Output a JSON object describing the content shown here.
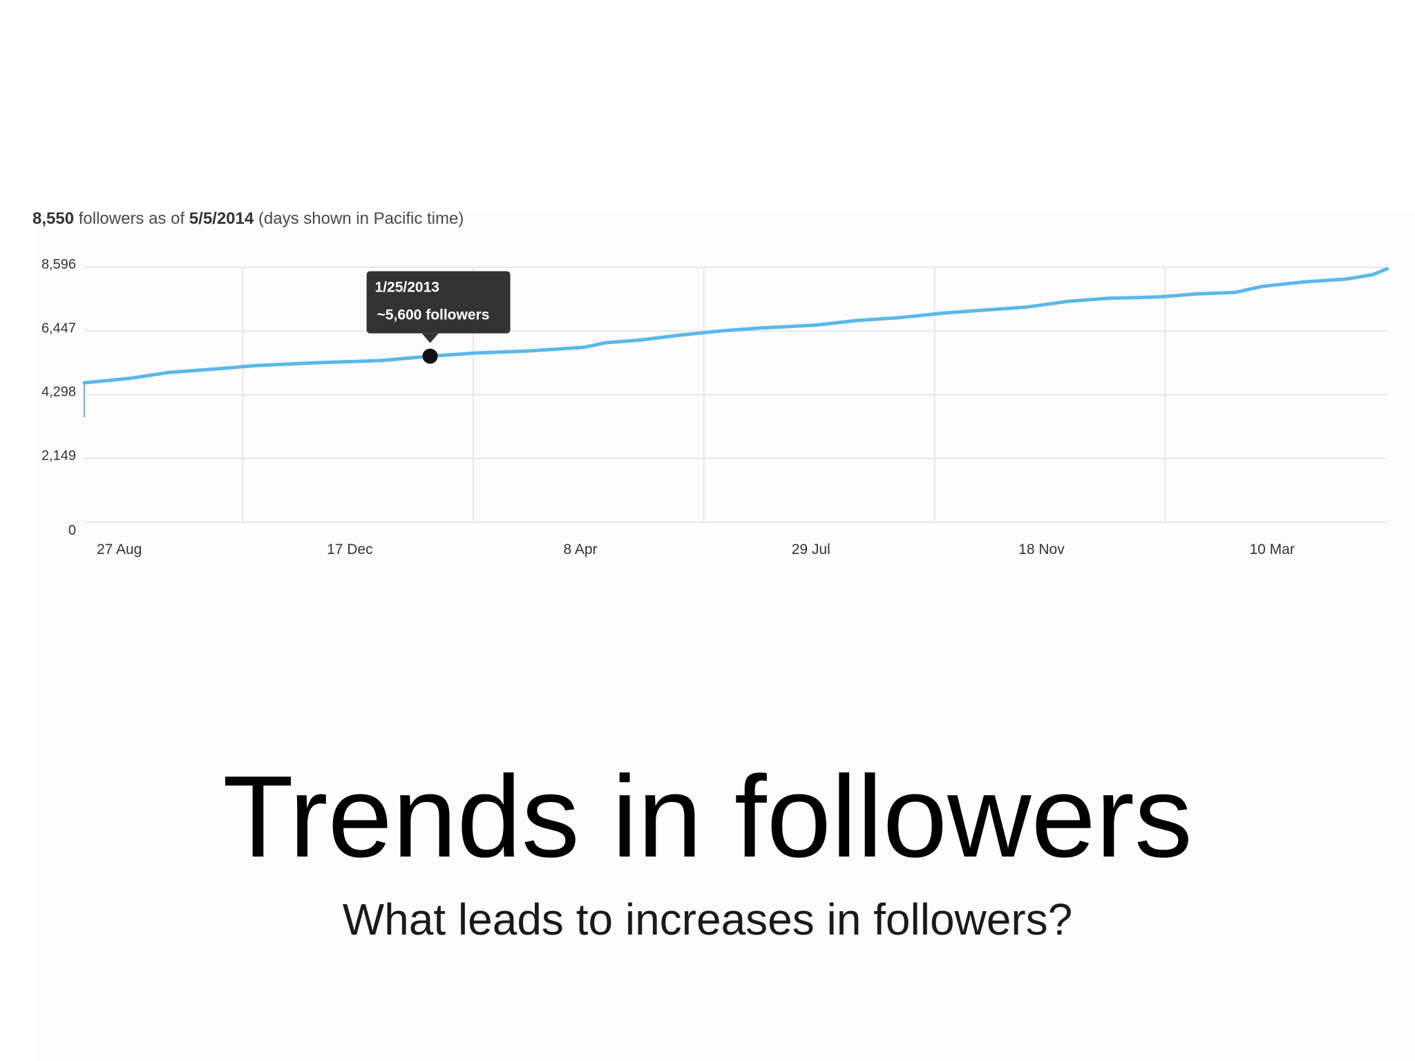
{
  "header": {
    "count": "8,550",
    "text1": " followers as of ",
    "date": "5/5/2014",
    "text2": " (days shown in Pacific time)"
  },
  "chart_data": {
    "type": "line",
    "y_ticks": [
      0,
      2149,
      4298,
      6447,
      8596
    ],
    "y_tick_labels": [
      "0",
      "2,149",
      "4,298",
      "6,447",
      "8,596"
    ],
    "ylim": [
      0,
      8596
    ],
    "xlim": [
      "2012-08-10",
      "2014-05-05"
    ],
    "x_tick_labels": [
      "27 Aug",
      "17 Dec",
      "8 Apr",
      "29 Jul",
      "18 Nov",
      "10 Mar"
    ],
    "x_tick_dates": [
      "2012-08-27",
      "2012-12-17",
      "2013-04-08",
      "2013-07-29",
      "2013-11-18",
      "2014-03-10"
    ],
    "grid": true,
    "series": [
      {
        "color": "#5bb8e8",
        "x": [
          "2012-08-10",
          "2012-09-01",
          "2012-09-20",
          "2012-10-15",
          "2012-11-01",
          "2012-12-01",
          "2013-01-01",
          "2013-01-25",
          "2013-02-15",
          "2013-03-15",
          "2013-04-10",
          "2013-04-20",
          "2013-05-08",
          "2013-05-25",
          "2013-06-15",
          "2013-07-05",
          "2013-08-01",
          "2013-08-20",
          "2013-09-10",
          "2013-10-01",
          "2013-10-20",
          "2013-11-10",
          "2013-12-01",
          "2013-12-20",
          "2014-01-15",
          "2014-02-01",
          "2014-02-20",
          "2014-03-05",
          "2014-03-25",
          "2014-04-15",
          "2014-04-28",
          "2014-05-05"
        ],
        "y": [
          4700,
          4850,
          5050,
          5180,
          5280,
          5380,
          5450,
          5600,
          5700,
          5780,
          5900,
          6050,
          6150,
          6300,
          6450,
          6550,
          6650,
          6800,
          6900,
          7050,
          7150,
          7250,
          7450,
          7550,
          7600,
          7700,
          7750,
          7950,
          8100,
          8200,
          8350,
          8550
        ]
      }
    ],
    "tooltip": {
      "date": "1/25/2013",
      "value_text": "~5,600 followers",
      "x": "2013-01-25",
      "y": 5600
    }
  },
  "slide": {
    "title": "Trends in followers",
    "subtitle": "What leads to increases in followers?"
  }
}
